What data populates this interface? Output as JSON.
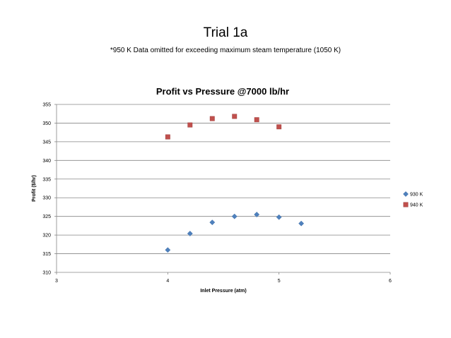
{
  "slide": {
    "title": "Trial 1a",
    "note": "*950 K Data omitted for exceeding maximum steam temperature (1050 K)"
  },
  "chart_data": {
    "type": "scatter",
    "title": "Profit vs Pressure @7000 lb/hr",
    "xlabel": "Inlet Pressure (atm)",
    "ylabel": "Profit ($/hr)",
    "xlim": [
      3,
      6
    ],
    "ylim": [
      310,
      355
    ],
    "xticks": [
      3,
      4,
      5,
      6
    ],
    "yticks": [
      310,
      315,
      320,
      325,
      330,
      335,
      340,
      345,
      350,
      355
    ],
    "grid": "horizontal",
    "legend_position": "right",
    "series": [
      {
        "name": "930 K",
        "marker": "diamond",
        "color": "#4f81bd",
        "x": [
          4.0,
          4.2,
          4.4,
          4.6,
          4.8,
          5.0,
          5.2
        ],
        "y": [
          316.0,
          320.4,
          323.4,
          325.0,
          325.5,
          324.8,
          323.1
        ]
      },
      {
        "name": "940 K",
        "marker": "square",
        "color": "#c0504d",
        "x": [
          4.0,
          4.2,
          4.4,
          4.6,
          4.8,
          5.0
        ],
        "y": [
          346.3,
          349.5,
          351.2,
          351.8,
          350.9,
          349.0
        ]
      }
    ]
  }
}
